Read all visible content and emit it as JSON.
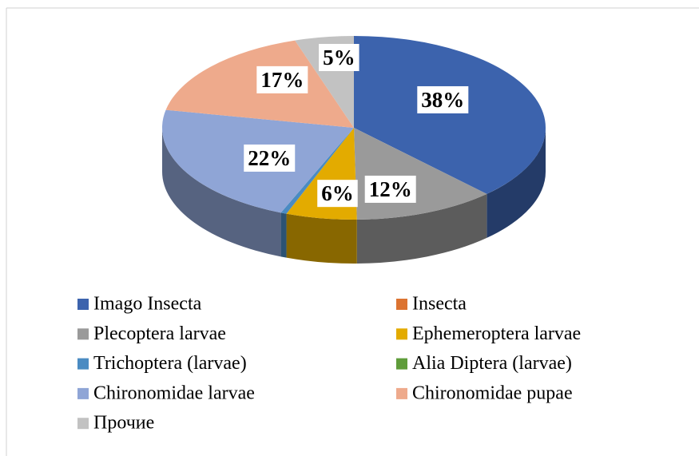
{
  "chart_data": {
    "type": "pie3d",
    "categories": [
      "Imago Insecta",
      "Insecta",
      "Plecoptera  larvae",
      "Ephemeroptera  larvae",
      "Trichoptera (larvae)",
      "Alia Diptera (larvae)",
      "Chironomidae  larvae",
      "Chironomidae pupae",
      "Прочие"
    ],
    "values": [
      38,
      0,
      12,
      6,
      0.5,
      0,
      22,
      17,
      5
    ],
    "value_labels": [
      "38%",
      null,
      "12%",
      "6%",
      null,
      null,
      "22%",
      "17%",
      "5%"
    ],
    "colors": [
      "#3c63ad",
      "#dc7331",
      "#9a9a9a",
      "#e3ab00",
      "#4a8bc2",
      "#5f9c3a",
      "#8fa5d6",
      "#eeaa8c",
      "#c2c2c2"
    ],
    "legend": "bottom"
  }
}
